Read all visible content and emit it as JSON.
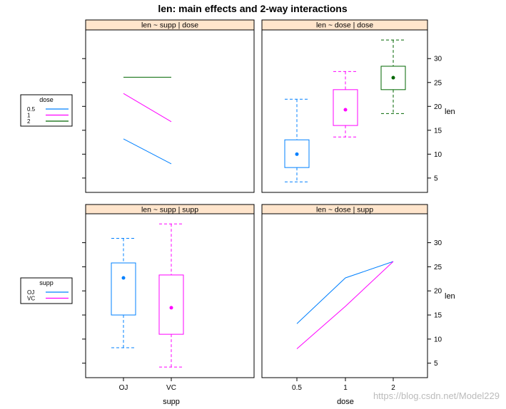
{
  "title": "len: main effects and 2-way interactions",
  "watermark": "https://blog.csdn.net/Model229",
  "colors": {
    "strip": "#ffe5cc",
    "frame": "#000000",
    "dose_0_5": "#0080ff",
    "dose_1": "#ff00ff",
    "dose_2": "#006600",
    "OJ": "#0080ff",
    "VC": "#ff00ff"
  },
  "legends": [
    {
      "title": "dose",
      "items": [
        {
          "label": "0.5",
          "color": "#0080ff"
        },
        {
          "label": "1",
          "color": "#ff00ff"
        },
        {
          "label": "2",
          "color": "#006600"
        }
      ]
    },
    {
      "title": "supp",
      "items": [
        {
          "label": "OJ",
          "color": "#0080ff"
        },
        {
          "label": "VC",
          "color": "#ff00ff"
        }
      ]
    }
  ],
  "chart_data": [
    {
      "type": "line",
      "strip": "len ~ supp | dose",
      "categories": [
        "OJ",
        "VC"
      ],
      "series": [
        {
          "name": "0.5",
          "values": [
            13.2,
            7.98
          ]
        },
        {
          "name": "1",
          "values": [
            22.7,
            16.8
          ]
        },
        {
          "name": "2",
          "values": [
            26.1,
            26.1
          ]
        }
      ],
      "ylim": [
        2,
        36
      ]
    },
    {
      "type": "box",
      "strip": "len ~ dose | dose",
      "categories": [
        "0.5",
        "1",
        "2"
      ],
      "boxes": [
        {
          "name": "0.5",
          "min": 4.2,
          "q1": 7.2,
          "median": 10.0,
          "q3": 13.0,
          "max": 21.5
        },
        {
          "name": "1",
          "min": 13.6,
          "q1": 16.0,
          "median": 19.3,
          "q3": 23.5,
          "max": 27.3
        },
        {
          "name": "2",
          "min": 18.5,
          "q1": 23.5,
          "median": 26.0,
          "q3": 28.4,
          "max": 33.9
        }
      ],
      "ylabel": "len",
      "yticks": [
        5,
        10,
        15,
        20,
        25,
        30
      ],
      "ylim": [
        2,
        36
      ]
    },
    {
      "type": "box",
      "strip": "len ~ supp | supp",
      "categories": [
        "OJ",
        "VC"
      ],
      "boxes": [
        {
          "name": "OJ",
          "min": 8.2,
          "q1": 15.0,
          "median": 22.7,
          "q3": 25.8,
          "max": 30.9
        },
        {
          "name": "VC",
          "min": 4.2,
          "q1": 11.0,
          "median": 16.5,
          "q3": 23.3,
          "max": 33.9
        }
      ],
      "xlabel": "supp",
      "xticks": [
        "OJ",
        "VC"
      ],
      "ylim": [
        2,
        36
      ]
    },
    {
      "type": "line",
      "strip": "len ~ dose | supp",
      "categories": [
        "0.5",
        "1",
        "2"
      ],
      "series": [
        {
          "name": "OJ",
          "values": [
            13.2,
            22.7,
            26.1
          ]
        },
        {
          "name": "VC",
          "values": [
            7.98,
            16.8,
            26.1
          ]
        }
      ],
      "xlabel": "dose",
      "ylabel": "len",
      "xticks": [
        "0.5",
        "1",
        "2"
      ],
      "yticks": [
        5,
        10,
        15,
        20,
        25,
        30
      ],
      "ylim": [
        2,
        36
      ]
    }
  ]
}
